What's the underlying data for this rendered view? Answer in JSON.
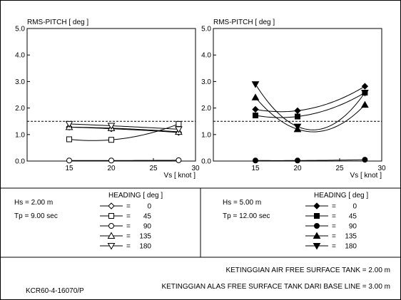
{
  "chart_data": [
    {
      "type": "line",
      "title": "RMS-PITCH [ deg ]",
      "xlabel": "Vs [ knot ]",
      "ylabel": "",
      "xlim": [
        10,
        30
      ],
      "ylim": [
        0.0,
        5.0
      ],
      "x_ticks": [
        15,
        20,
        25,
        30
      ],
      "y_ticks": [
        "0.0",
        "1.0",
        "2.0",
        "3.0",
        "4.0",
        "5.0"
      ],
      "reference_line": 1.5,
      "marker_fill": "open",
      "x": [
        15,
        20,
        28
      ],
      "series": [
        {
          "name": "0",
          "marker": "diamond",
          "values": [
            1.28,
            1.22,
            1.08
          ]
        },
        {
          "name": "45",
          "marker": "square",
          "values": [
            0.82,
            0.8,
            1.4
          ]
        },
        {
          "name": "90",
          "marker": "circle",
          "values": [
            0.02,
            0.02,
            0.03
          ]
        },
        {
          "name": "135",
          "marker": "triangle-up",
          "values": [
            1.28,
            1.24,
            1.1
          ]
        },
        {
          "name": "180",
          "marker": "triangle-down",
          "values": [
            1.4,
            1.33,
            1.2
          ]
        }
      ],
      "legend": {
        "heading_label": "HEADING [ deg ]",
        "hs": "Hs = 2.00 m",
        "tp": "Tp = 9.00 sec"
      }
    },
    {
      "type": "line",
      "title": "RMS-PITCH [ deg ]",
      "xlabel": "Vs [ knot ]",
      "ylabel": "",
      "xlim": [
        10,
        30
      ],
      "ylim": [
        0.0,
        5.0
      ],
      "x_ticks": [
        15,
        20,
        25,
        30
      ],
      "y_ticks": [
        "0.0",
        "1.0",
        "2.0",
        "3.0",
        "4.0",
        "5.0"
      ],
      "reference_line": 1.5,
      "marker_fill": "filled",
      "x": [
        15,
        20,
        28
      ],
      "series": [
        {
          "name": "0",
          "marker": "diamond",
          "values": [
            1.95,
            1.9,
            2.82
          ]
        },
        {
          "name": "45",
          "marker": "square",
          "values": [
            1.72,
            1.68,
            2.58
          ]
        },
        {
          "name": "90",
          "marker": "circle",
          "values": [
            0.02,
            0.02,
            0.05
          ]
        },
        {
          "name": "135",
          "marker": "triangle-up",
          "values": [
            2.4,
            1.2,
            2.12
          ]
        },
        {
          "name": "180",
          "marker": "triangle-down",
          "values": [
            2.9,
            1.3,
            2.58
          ]
        }
      ],
      "legend": {
        "heading_label": "HEADING [ deg ]",
        "hs": "Hs = 5.00 m",
        "tp": "Tp = 12.00 sec"
      }
    }
  ],
  "footer": {
    "line1": "KETINGGIAN AIR FREE SURFACE TANK = 2.00 m",
    "line2": "KETINGGIAN ALAS FREE SURFACE TANK DARI BASE LINE = 3.00 m",
    "code": "KCR60-4-16070/P"
  }
}
